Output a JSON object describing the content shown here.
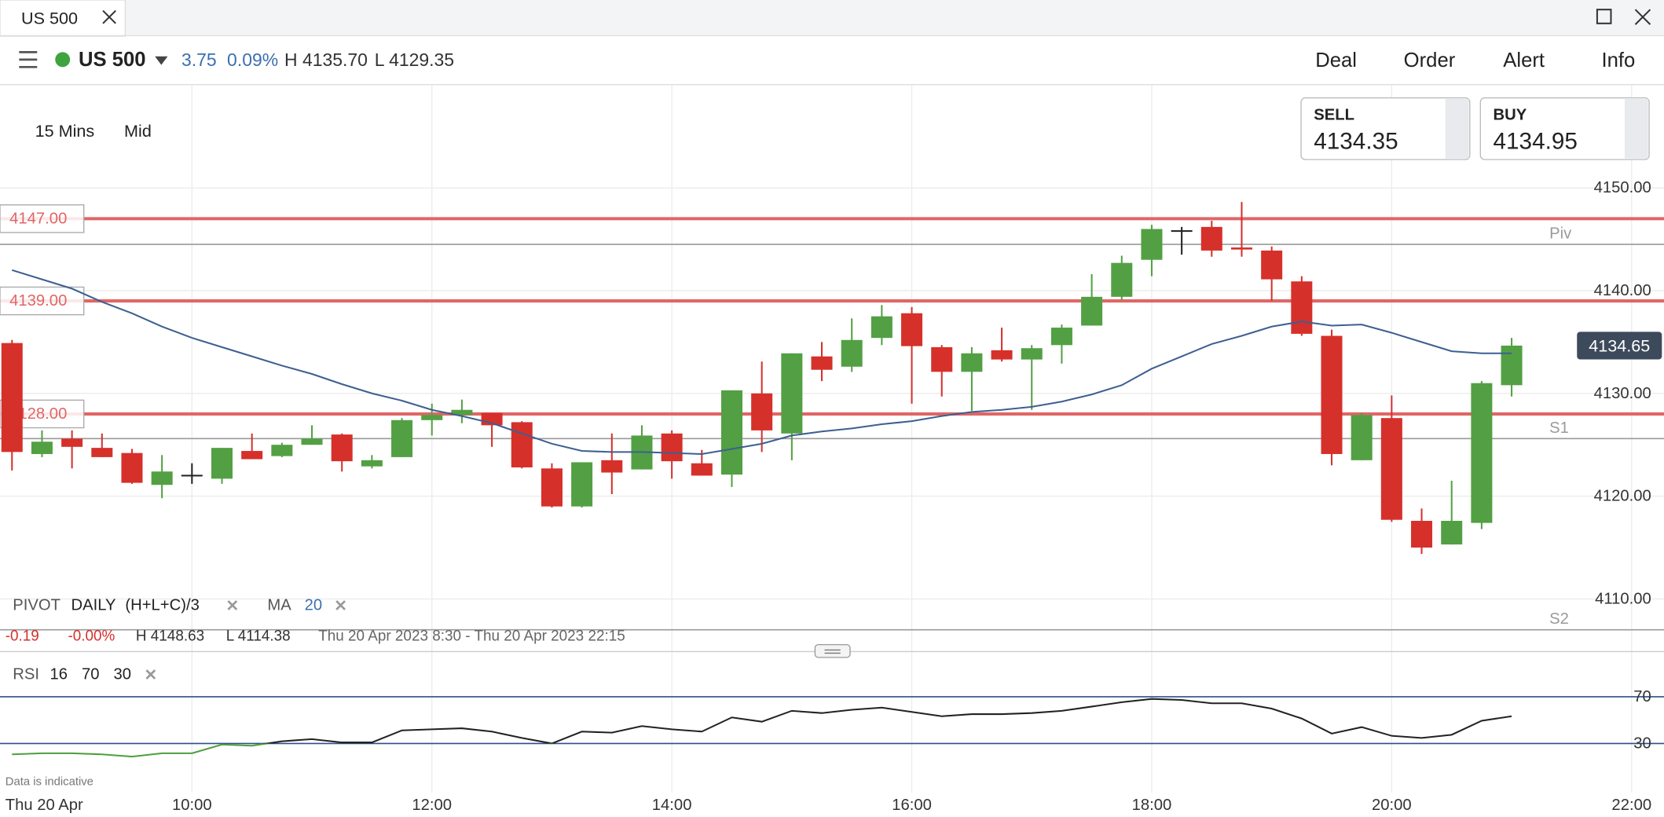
{
  "tab": {
    "title": "US 500"
  },
  "toolbar": {
    "instrument": "US 500",
    "change": "3.75",
    "change_pct": "0.09%",
    "high": "H 4135.70",
    "low": "L 4129.35",
    "menu": [
      "Deal",
      "Order",
      "Alert",
      "Info"
    ]
  },
  "quotes": {
    "sell_label": "SELL",
    "sell": "4134.35",
    "buy_label": "BUY",
    "buy": "4134.95"
  },
  "chart_settings": {
    "interval": "15 Mins",
    "price": "Mid"
  },
  "range_info": {
    "change": "-0.19",
    "change_pct": "-0.00%",
    "high": "H 4148.63",
    "low": "L 4114.38",
    "period": "Thu 20 Apr 2023 8:30 - Thu 20 Apr 2023 22:15"
  },
  "footer_note": "Data is indicative",
  "chart_data": [
    {
      "type": "candlestick",
      "x": [
        8.5,
        8.75,
        9,
        9.25,
        9.5,
        9.75,
        10,
        10.25,
        10.5,
        10.75,
        11,
        11.25,
        11.5,
        11.75,
        12,
        12.25,
        12.5,
        12.75,
        13,
        13.25,
        13.5,
        13.75,
        14,
        14.25,
        14.5,
        14.75,
        15,
        15.25,
        15.5,
        15.75,
        16,
        16.25,
        16.5,
        16.75,
        17,
        17.25,
        17.5,
        17.75,
        18,
        18.25,
        18.5,
        18.75,
        19,
        19.25,
        19.5,
        19.75,
        20,
        20.25,
        20.5,
        20.75,
        21
      ],
      "open": [
        4134.9,
        4124.1,
        4125.6,
        4124.7,
        4124.2,
        4121.1,
        4122.0,
        4121.7,
        4124.4,
        4123.9,
        4125.0,
        4126.0,
        4122.9,
        4123.8,
        4127.4,
        4127.9,
        4128.1,
        4127.2,
        4122.7,
        4119.0,
        4123.5,
        4122.6,
        4126.1,
        4123.2,
        4122.1,
        4130.0,
        4126.1,
        4133.6,
        4132.6,
        4135.4,
        4137.8,
        4134.5,
        4132.1,
        4134.2,
        4133.3,
        4134.7,
        4136.6,
        4139.4,
        4143.0,
        4145.8,
        4146.2,
        4144.2,
        4143.9,
        4140.9,
        4135.6,
        4123.5,
        4127.6,
        4117.6,
        4115.3,
        4117.4,
        4130.8
      ],
      "high": [
        4135.2,
        4126.4,
        4126.4,
        4126.1,
        4124.6,
        4124.0,
        4123.2,
        4124.7,
        4126.1,
        4125.2,
        4126.9,
        4126.1,
        4124.0,
        4127.6,
        4129.0,
        4129.4,
        4128.1,
        4127.3,
        4123.2,
        4123.3,
        4126.1,
        4126.9,
        4126.4,
        4124.5,
        4130.3,
        4133.1,
        4133.9,
        4135.0,
        4137.3,
        4138.6,
        4138.4,
        4134.7,
        4134.5,
        4136.4,
        4134.7,
        4136.7,
        4141.6,
        4143.4,
        4146.4,
        4146.2,
        4146.8,
        4148.63,
        4144.3,
        4141.4,
        4136.2,
        4128.1,
        4129.8,
        4118.8,
        4121.5,
        4131.2,
        4135.4
      ],
      "low": [
        4122.5,
        4123.8,
        4122.7,
        4123.8,
        4121.2,
        4119.8,
        4121.2,
        4121.2,
        4123.6,
        4123.8,
        4125.0,
        4122.4,
        4122.7,
        4123.8,
        4125.9,
        4127.1,
        4124.8,
        4122.7,
        4118.9,
        4118.9,
        4120.2,
        4122.6,
        4121.7,
        4122.0,
        4120.9,
        4124.3,
        4123.5,
        4131.2,
        4132.1,
        4134.7,
        4129.0,
        4129.7,
        4128.3,
        4133.1,
        4128.4,
        4132.9,
        4136.6,
        4139.1,
        4141.4,
        4143.5,
        4143.3,
        4143.3,
        4139.0,
        4135.6,
        4123.0,
        4123.5,
        4117.5,
        4114.38,
        4115.3,
        4116.8,
        4129.7
      ],
      "close": [
        4124.3,
        4125.3,
        4124.8,
        4123.8,
        4121.3,
        4122.4,
        4122.0,
        4124.7,
        4123.6,
        4125.0,
        4125.6,
        4123.4,
        4123.5,
        4127.4,
        4127.9,
        4128.4,
        4126.9,
        4122.8,
        4119.0,
        4123.3,
        4122.3,
        4125.9,
        4123.4,
        4122.0,
        4130.3,
        4126.4,
        4133.9,
        4132.3,
        4135.2,
        4137.5,
        4134.6,
        4132.1,
        4133.9,
        4133.3,
        4134.4,
        4136.4,
        4139.4,
        4142.7,
        4146.0,
        4145.8,
        4143.9,
        4144.0,
        4141.1,
        4135.8,
        4124.1,
        4127.9,
        4117.7,
        4115.0,
        4117.6,
        4131.0,
        4134.65
      ],
      "up_color": "#52a043",
      "down_color": "#d6302b",
      "doji_color": "#222222",
      "xlim": [
        8.4,
        22.27
      ],
      "xticks": [
        {
          "value": 10,
          "label": "10:00"
        },
        {
          "value": 12,
          "label": "12:00"
        },
        {
          "value": 14,
          "label": "14:00"
        },
        {
          "value": 16,
          "label": "16:00"
        },
        {
          "value": 18,
          "label": "18:00"
        },
        {
          "value": 20,
          "label": "20:00"
        },
        {
          "value": 22,
          "label": "22:00"
        }
      ],
      "x_start_label": "Thu 20 Apr",
      "ylim": [
        4107,
        4160
      ],
      "yticks": [
        {
          "value": 4110,
          "label": "4110.00"
        },
        {
          "value": 4120,
          "label": "4120.00"
        },
        {
          "value": 4130,
          "label": "4130.00"
        },
        {
          "value": 4140,
          "label": "4140.00"
        },
        {
          "value": 4150,
          "label": "4150.00"
        }
      ],
      "grid": true,
      "levels": [
        {
          "value": 4147,
          "label": "4147.00"
        },
        {
          "value": 4139,
          "label": "4139.00"
        },
        {
          "value": 4128,
          "label": "4128.00"
        }
      ],
      "level_color": "#e06666",
      "pivots": [
        {
          "name": "Piv",
          "value": 4144.5
        },
        {
          "name": "S1",
          "value": 4125.6
        },
        {
          "name": "S2",
          "value": 4107.0
        }
      ],
      "pivot_color": "#9a9a9a",
      "pivot_legend": {
        "name": "PIVOT",
        "period": "DAILY",
        "formula": "(H+L+C)/3"
      },
      "ma": {
        "name": "MA",
        "period": 20,
        "color": "#3d5f91",
        "values": [
          4142.0,
          4141.1,
          4140.2,
          4138.9,
          4137.8,
          4136.5,
          4135.4,
          4134.5,
          4133.6,
          4132.7,
          4131.9,
          4130.9,
          4130.0,
          4129.3,
          4128.4,
          4127.8,
          4127.1,
          4126.1,
          4125.1,
          4124.4,
          4124.3,
          4124.3,
          4124.2,
          4124.1,
          4124.6,
          4125.1,
          4125.9,
          4126.3,
          4126.6,
          4127.0,
          4127.3,
          4127.8,
          4128.2,
          4128.4,
          4128.7,
          4129.2,
          4129.9,
          4130.8,
          4132.4,
          4133.6,
          4134.8,
          4135.6,
          4136.5,
          4137.0,
          4136.6,
          4136.7,
          4135.9,
          4135.0,
          4134.1,
          4133.9,
          4133.9
        ]
      },
      "last_price": {
        "value": 4134.65,
        "label": "4134.65"
      }
    },
    {
      "type": "line",
      "title": "RSI",
      "period": 16,
      "overbought": 70,
      "oversold": 30,
      "values": [
        20.7,
        21.6,
        21.6,
        20.7,
        18.8,
        21.6,
        21.6,
        29.1,
        28.1,
        31.9,
        33.7,
        30.9,
        30.9,
        41.2,
        42.1,
        43.0,
        40.2,
        34.7,
        30.0,
        40.2,
        39.3,
        44.9,
        42.1,
        40.2,
        52.3,
        48.6,
        57.9,
        56.0,
        58.8,
        60.7,
        57.0,
        53.3,
        55.1,
        55.1,
        56.0,
        57.9,
        61.6,
        65.3,
        68.1,
        67.2,
        64.4,
        64.4,
        59.8,
        51.4,
        38.4,
        44.0,
        36.5,
        34.7,
        37.4,
        49.5,
        53.3
      ],
      "ylim": [
        -12,
        100
      ],
      "yticks": [
        70,
        30
      ],
      "color": "#222222",
      "oversold_color": "#4c9f3d",
      "level_color": "#2d4f86"
    }
  ]
}
